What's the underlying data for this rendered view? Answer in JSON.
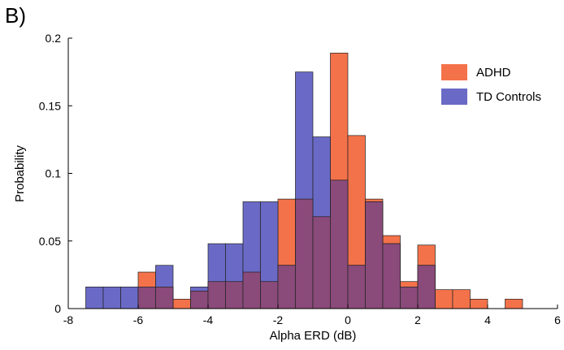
{
  "panel_label": "B)",
  "chart_data": {
    "type": "histogram",
    "xlabel": "Alpha ERD (dB)",
    "ylabel": "Probability",
    "xlim": [
      -8,
      6
    ],
    "ylim": [
      0,
      0.2
    ],
    "xticks": [
      -8,
      -6,
      -4,
      -2,
      0,
      2,
      4,
      6
    ],
    "xtick_labels": [
      "-8",
      "-6",
      "-4",
      "-2",
      "0",
      "2",
      "4",
      "6"
    ],
    "yticks": [
      0,
      0.05,
      0.1,
      0.15,
      0.2
    ],
    "ytick_labels": [
      "0",
      "0.05",
      "0.1",
      "0.15",
      "0.2"
    ],
    "bin_width": 0.5,
    "grid": false,
    "legend_position": "top-right",
    "colors": {
      "ADHD": "#f4724a",
      "TD Controls": "#6a6ac6",
      "overlap": "#8a4a7a"
    },
    "series": [
      {
        "name": "ADHD",
        "bins": [
          {
            "x0": -6.0,
            "value": 0.027
          },
          {
            "x0": -5.5,
            "value": 0.016
          },
          {
            "x0": -5.0,
            "value": 0.007
          },
          {
            "x0": -4.5,
            "value": 0.013
          },
          {
            "x0": -4.0,
            "value": 0.02
          },
          {
            "x0": -3.5,
            "value": 0.02
          },
          {
            "x0": -3.0,
            "value": 0.027
          },
          {
            "x0": -2.5,
            "value": 0.02
          },
          {
            "x0": -2.0,
            "value": 0.081
          },
          {
            "x0": -1.5,
            "value": 0.081
          },
          {
            "x0": -1.0,
            "value": 0.068
          },
          {
            "x0": -0.5,
            "value": 0.189
          },
          {
            "x0": 0.0,
            "value": 0.128
          },
          {
            "x0": 0.5,
            "value": 0.081
          },
          {
            "x0": 1.0,
            "value": 0.054
          },
          {
            "x0": 1.5,
            "value": 0.02
          },
          {
            "x0": 2.0,
            "value": 0.047
          },
          {
            "x0": 2.5,
            "value": 0.014
          },
          {
            "x0": 3.0,
            "value": 0.014
          },
          {
            "x0": 3.5,
            "value": 0.007
          },
          {
            "x0": 4.5,
            "value": 0.007
          }
        ]
      },
      {
        "name": "TD Controls",
        "bins": [
          {
            "x0": -7.5,
            "value": 0.016
          },
          {
            "x0": -7.0,
            "value": 0.016
          },
          {
            "x0": -6.5,
            "value": 0.016
          },
          {
            "x0": -6.0,
            "value": 0.016
          },
          {
            "x0": -5.5,
            "value": 0.032
          },
          {
            "x0": -4.5,
            "value": 0.016
          },
          {
            "x0": -4.0,
            "value": 0.048
          },
          {
            "x0": -3.5,
            "value": 0.048
          },
          {
            "x0": -3.0,
            "value": 0.079
          },
          {
            "x0": -2.5,
            "value": 0.079
          },
          {
            "x0": -2.0,
            "value": 0.032
          },
          {
            "x0": -1.5,
            "value": 0.175
          },
          {
            "x0": -1.0,
            "value": 0.127
          },
          {
            "x0": -0.5,
            "value": 0.095
          },
          {
            "x0": 0.0,
            "value": 0.032
          },
          {
            "x0": 0.5,
            "value": 0.079
          },
          {
            "x0": 1.0,
            "value": 0.048
          },
          {
            "x0": 1.5,
            "value": 0.016
          },
          {
            "x0": 2.0,
            "value": 0.032
          }
        ]
      }
    ]
  }
}
